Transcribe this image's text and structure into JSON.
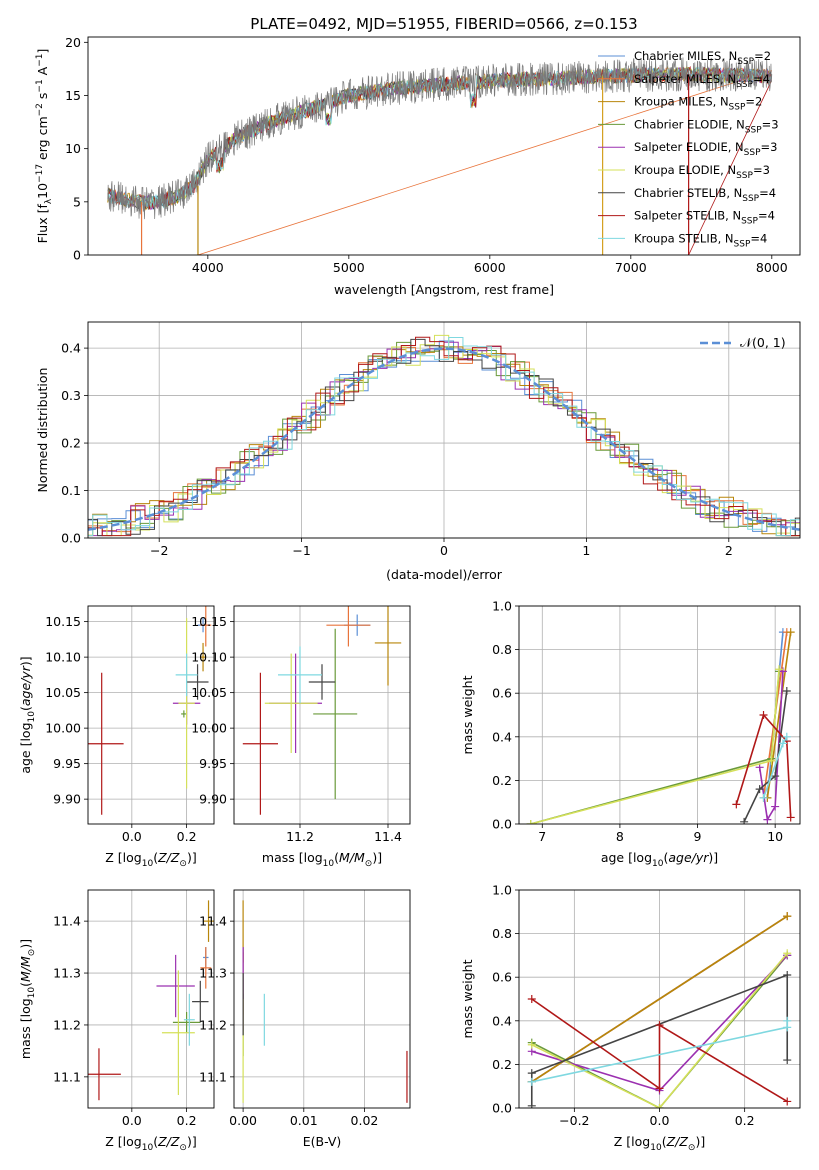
{
  "figure_title": "PLATE=0492, MJD=51955, FIBERID=0566, z=0.153",
  "models": [
    {
      "name": "Chabrier MILES, N_SSP=2",
      "name_main": "Chabrier MILES, N",
      "name_sub": "SSP",
      "name_end": "=2",
      "color": "#5b8fd6"
    },
    {
      "name": "Salpeter MILES, N_SSP=4",
      "name_main": "Salpeter MILES, N",
      "name_sub": "SSP",
      "name_end": "=4",
      "color": "#e8743b"
    },
    {
      "name": "Kroupa MILES, N_SSP=2",
      "name_main": "Kroupa MILES, N",
      "name_sub": "SSP",
      "name_end": "=2",
      "color": "#b8860b"
    },
    {
      "name": "Chabrier ELODIE, N_SSP=3",
      "name_main": "Chabrier ELODIE, N",
      "name_sub": "SSP",
      "name_end": "=3",
      "color": "#6a9a3a"
    },
    {
      "name": "Salpeter ELODIE, N_SSP=3",
      "name_main": "Salpeter ELODIE, N",
      "name_sub": "SSP",
      "name_end": "=3",
      "color": "#9b30b0"
    },
    {
      "name": "Kroupa ELODIE, N_SSP=3",
      "name_main": "Kroupa ELODIE, N",
      "name_sub": "SSP",
      "name_end": "=3",
      "color": "#d4e05a"
    },
    {
      "name": "Chabrier STELIB, N_SSP=4",
      "name_main": "Chabrier STELIB, N",
      "name_sub": "SSP",
      "name_end": "=4",
      "color": "#444444"
    },
    {
      "name": "Salpeter STELIB, N_SSP=4",
      "name_main": "Salpeter STELIB, N",
      "name_sub": "SSP",
      "name_end": "=4",
      "color": "#b01818"
    },
    {
      "name": "Kroupa STELIB, N_SSP=4",
      "name_main": "Kroupa STELIB, N",
      "name_sub": "SSP",
      "name_end": "=4",
      "color": "#7fd8e0"
    }
  ],
  "chart_data": [
    {
      "id": "spectrum",
      "type": "line",
      "xlabel": "wavelength [Angstrom, rest frame]",
      "ylabel": "Flux [f_λ 10^-17 erg cm^-2 s^-1 A^-1]",
      "ylabel_main": "Flux [f",
      "ylabel_rest": " erg cm",
      "ylabel_tail": " s",
      "ylabel_end": " A",
      "ylabel_close": "]",
      "xlim": [
        3150,
        8200
      ],
      "ylim": [
        0,
        20.5
      ],
      "xticks": [
        4000,
        5000,
        6000,
        7000,
        8000
      ],
      "yticks": [
        0,
        5,
        10,
        15,
        20
      ],
      "grid": false,
      "legend_position": "right",
      "continuum_x": [
        3300,
        3400,
        3500,
        3600,
        3700,
        3800,
        3900,
        4000,
        4200,
        4500,
        4800,
        5000,
        5300,
        5600,
        5900,
        6200,
        6500,
        6800,
        7100,
        7400,
        7700,
        8000
      ],
      "continuum_y": [
        5.6,
        5.3,
        5.0,
        4.9,
        5.2,
        5.6,
        6.5,
        9.0,
        11.0,
        12.8,
        14.0,
        15.0,
        15.6,
        16.0,
        16.3,
        16.5,
        16.6,
        16.8,
        16.9,
        17.0,
        16.9,
        16.8
      ],
      "dips": [
        [
          3530,
          0
        ],
        [
          3930,
          0
        ],
        [
          6800,
          0
        ],
        [
          7410,
          0
        ]
      ]
    },
    {
      "id": "residuals",
      "type": "histogram",
      "xlabel": "(data-model)/error",
      "ylabel": "Normed distribution",
      "xlim": [
        -2.5,
        2.5
      ],
      "ylim": [
        0,
        0.455
      ],
      "xticks": [
        -2,
        -1,
        0,
        1,
        2
      ],
      "yticks": [
        0.0,
        0.1,
        0.2,
        0.3,
        0.4
      ],
      "grid": true,
      "legend": "N(0,1)",
      "legend_position": "top-right",
      "bin_width": 0.1,
      "reference_curve": "normal(0,1)"
    },
    {
      "id": "age-vs-Z",
      "type": "scatter",
      "xlabel": "Z [log10(Z/Z☉)]",
      "ylabel": "age [log10(age/yr)]",
      "xlim": [
        -0.16,
        0.3
      ],
      "ylim": [
        9.865,
        10.172
      ],
      "xticks": [
        0.0,
        0.2
      ],
      "yticks": [
        9.9,
        9.95,
        10.0,
        10.05,
        10.1,
        10.15
      ],
      "grid": true,
      "points": [
        {
          "x": 0.26,
          "y": 10.145,
          "xerr": 0.02,
          "yerr": 0.01
        },
        {
          "x": 0.27,
          "y": 10.145,
          "xerr": 0.02,
          "yerr": 0.03
        },
        {
          "x": 0.26,
          "y": 10.1,
          "xerr": 0.01,
          "yerr": 0.02
        },
        {
          "x": 0.19,
          "y": 10.02,
          "xerr": 0.01,
          "yerr": 0.005
        },
        {
          "x": 0.2,
          "y": 10.035,
          "xerr": 0.05,
          "yerr": 0.03
        },
        {
          "x": 0.2,
          "y": 10.035,
          "xerr": 0.03,
          "yerr": 0.12
        },
        {
          "x": 0.24,
          "y": 10.065,
          "xerr": 0.04,
          "yerr": 0.025
        },
        {
          "x": -0.11,
          "y": 9.978,
          "xerr": 0.08,
          "yerr": 0.1
        },
        {
          "x": 0.2,
          "y": 10.075,
          "xerr": 0.04,
          "yerr": 0.03
        }
      ]
    },
    {
      "id": "age-vs-mass",
      "type": "scatter",
      "xlabel": "mass [log10(M/M☉)]",
      "ylabel": "",
      "xlim": [
        11.05,
        11.45
      ],
      "ylim": [
        9.865,
        10.172
      ],
      "xticks": [
        11.2,
        11.4
      ],
      "yticks": [
        9.9,
        9.95,
        10.0,
        10.05,
        10.1,
        10.15
      ],
      "grid": true,
      "points": [
        {
          "x": 11.33,
          "y": 10.145,
          "xerr": 0.03,
          "yerr": 0.015
        },
        {
          "x": 11.31,
          "y": 10.145,
          "xerr": 0.05,
          "yerr": 0.03
        },
        {
          "x": 11.4,
          "y": 10.12,
          "xerr": 0.03,
          "yerr": 0.06
        },
        {
          "x": 11.28,
          "y": 10.02,
          "xerr": 0.05,
          "yerr": 0.12
        },
        {
          "x": 11.19,
          "y": 10.035,
          "xerr": 0.06,
          "yerr": 0.07
        },
        {
          "x": 11.18,
          "y": 10.035,
          "xerr": 0.06,
          "yerr": 0.07
        },
        {
          "x": 11.25,
          "y": 10.065,
          "xerr": 0.03,
          "yerr": 0.025
        },
        {
          "x": 11.11,
          "y": 9.978,
          "xerr": 0.04,
          "yerr": 0.1
        },
        {
          "x": 11.2,
          "y": 10.075,
          "xerr": 0.05,
          "yerr": 0.04
        }
      ]
    },
    {
      "id": "weight-vs-age",
      "type": "line",
      "xlabel": "age [log10(age/yr)]",
      "ylabel": "mass weight",
      "xlim": [
        6.7,
        10.32
      ],
      "ylim": [
        0,
        1
      ],
      "xticks": [
        7,
        8,
        9,
        10
      ],
      "yticks": [
        0.0,
        0.2,
        0.4,
        0.6,
        0.8,
        1.0
      ],
      "grid": true,
      "series": [
        {
          "x": [
            9.9,
            10.1
          ],
          "y": [
            0.12,
            0.88
          ]
        },
        {
          "x": [
            9.85,
            10.15
          ],
          "y": [
            0.12,
            0.88
          ]
        },
        {
          "x": [
            9.9,
            10.2
          ],
          "y": [
            0.12,
            0.88
          ]
        },
        {
          "x": [
            6.85,
            9.95,
            10.05
          ],
          "y": [
            0.0,
            0.3,
            0.7
          ]
        },
        {
          "x": [
            9.8,
            9.9,
            10.0,
            10.1
          ],
          "y": [
            0.26,
            0.02,
            0.08,
            0.7
          ]
        },
        {
          "x": [
            6.85,
            9.95,
            10.05
          ],
          "y": [
            0.0,
            0.29,
            0.71
          ]
        },
        {
          "x": [
            9.6,
            9.8,
            10.0,
            10.15
          ],
          "y": [
            0.01,
            0.16,
            0.22,
            0.61
          ]
        },
        {
          "x": [
            9.5,
            9.85,
            10.15,
            10.2
          ],
          "y": [
            0.09,
            0.5,
            0.38,
            0.03
          ]
        },
        {
          "x": [
            9.85,
            10.1,
            10.15
          ],
          "y": [
            0.12,
            0.37,
            0.4
          ]
        }
      ]
    },
    {
      "id": "mass-vs-Z",
      "type": "scatter",
      "xlabel": "Z [log10(Z/Z☉)]",
      "ylabel": "mass [log10(M/M☉)]",
      "xlim": [
        -0.16,
        0.3
      ],
      "ylim": [
        11.04,
        11.46
      ],
      "xticks": [
        0.0,
        0.2
      ],
      "yticks": [
        11.1,
        11.2,
        11.3,
        11.4
      ],
      "grid": true,
      "points": [
        {
          "x": 0.27,
          "y": 11.33,
          "xerr": 0.01,
          "yerr": 0.02
        },
        {
          "x": 0.27,
          "y": 11.31,
          "xerr": 0.02,
          "yerr": 0.04
        },
        {
          "x": 0.28,
          "y": 11.4,
          "xerr": 0.02,
          "yerr": 0.04
        },
        {
          "x": 0.2,
          "y": 11.205,
          "xerr": 0.05,
          "yerr": 0.02
        },
        {
          "x": 0.16,
          "y": 11.275,
          "xerr": 0.07,
          "yerr": 0.06
        },
        {
          "x": 0.17,
          "y": 11.185,
          "xerr": 0.06,
          "yerr": 0.12
        },
        {
          "x": 0.25,
          "y": 11.245,
          "xerr": 0.03,
          "yerr": 0.04
        },
        {
          "x": -0.12,
          "y": 11.105,
          "xerr": 0.08,
          "yerr": 0.05
        },
        {
          "x": 0.21,
          "y": 11.21,
          "xerr": 0.02,
          "yerr": 0.05
        }
      ]
    },
    {
      "id": "mass-vs-ebv",
      "type": "scatter",
      "xlabel": "E(B-V)",
      "ylabel": "",
      "xlim": [
        -0.0015,
        0.0275
      ],
      "ylim": [
        11.04,
        11.46
      ],
      "xticks": [
        0.0,
        0.01,
        0.02
      ],
      "yticks": [
        11.1,
        11.2,
        11.3,
        11.4
      ],
      "grid": true,
      "points": [
        {
          "x": 0.0,
          "y": 11.3,
          "xerr": 0.0,
          "yerr": 0.05
        },
        {
          "x": 0.0,
          "y": 11.28,
          "xerr": 0.0,
          "yerr": 0.06
        },
        {
          "x": 0.0,
          "y": 11.38,
          "xerr": 0.0,
          "yerr": 0.06
        },
        {
          "x": 0.0,
          "y": 11.2,
          "xerr": 0.0,
          "yerr": 0.06
        },
        {
          "x": 0.0,
          "y": 11.27,
          "xerr": 0.0,
          "yerr": 0.08
        },
        {
          "x": 0.0,
          "y": 11.15,
          "xerr": 0.0,
          "yerr": 0.1
        },
        {
          "x": 0.0,
          "y": 11.24,
          "xerr": 0.0,
          "yerr": 0.06
        },
        {
          "x": 0.027,
          "y": 11.1,
          "xerr": 0.0,
          "yerr": 0.05
        },
        {
          "x": 0.0035,
          "y": 11.21,
          "xerr": 0.0,
          "yerr": 0.05
        }
      ]
    },
    {
      "id": "weight-vs-Z",
      "type": "line",
      "xlabel": "Z [log10(Z/Z☉)]",
      "ylabel": "mass weight",
      "xlim": [
        -0.33,
        0.33
      ],
      "ylim": [
        0,
        1
      ],
      "xticks": [
        -0.2,
        0.0,
        0.2
      ],
      "yticks": [
        0.0,
        0.2,
        0.4,
        0.6,
        0.8,
        1.0
      ],
      "grid": true,
      "series": [
        {
          "x": [
            -0.3,
            0.3
          ],
          "y": [
            0.12,
            0.88
          ]
        },
        {
          "x": [
            -0.3,
            0.3
          ],
          "y": [
            0.12,
            0.88
          ]
        },
        {
          "x": [
            -0.3,
            0.3
          ],
          "y": [
            0.12,
            0.88
          ]
        },
        {
          "x": [
            -0.3,
            0.0,
            0.3
          ],
          "y": [
            0.3,
            0.0,
            0.7
          ]
        },
        {
          "x": [
            -0.3,
            0.0,
            0.3
          ],
          "y": [
            0.26,
            0.08,
            0.7
          ]
        },
        {
          "x": [
            -0.3,
            0.0,
            0.3
          ],
          "y": [
            0.29,
            0.0,
            0.71
          ]
        },
        {
          "x": [
            -0.3,
            -0.3,
            0.3,
            0.3
          ],
          "y": [
            0.01,
            0.16,
            0.61,
            0.22
          ]
        },
        {
          "x": [
            -0.3,
            0.0,
            0.0,
            0.3
          ],
          "y": [
            0.5,
            0.09,
            0.38,
            0.03
          ]
        },
        {
          "x": [
            -0.3,
            0.3,
            0.3
          ],
          "y": [
            0.12,
            0.37,
            0.4
          ]
        }
      ]
    }
  ]
}
